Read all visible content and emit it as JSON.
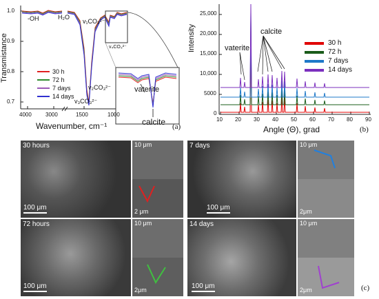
{
  "panel_a": {
    "label": "(a)",
    "ylabel": "Transmistance",
    "xlabel": "Wavenumber, cm⁻¹",
    "yticks": [
      "0.7",
      "0.8",
      "0.9",
      "1.0"
    ],
    "xticks": [
      "4000",
      "3000",
      "1500",
      "1000"
    ],
    "annotations": {
      "oh": "-OH",
      "h2o": "H₂O",
      "v1": "v₁CO₃²⁻",
      "v4": "v₄CO₃²⁻",
      "v2": "v₂CO₃²⁻",
      "v3": "v₃CO₃²⁻",
      "vaterite": "vaterite",
      "calcite": "calcite"
    },
    "legend": [
      {
        "name": "30 h",
        "color": "#e02020"
      },
      {
        "name": "72 h",
        "color": "#2e8b2e"
      },
      {
        "name": "7 days",
        "color": "#9b59b6"
      },
      {
        "name": "14 days",
        "color": "#3030d0"
      }
    ]
  },
  "panel_b": {
    "label": "(b)",
    "ylabel": "Intensity",
    "xlabel": "Angle (Θ), grad",
    "yticks": [
      "0",
      "5000",
      "10,000",
      "15,000",
      "20,000",
      "25,000"
    ],
    "xticks": [
      "10",
      "20",
      "30",
      "40",
      "50",
      "60",
      "70",
      "80",
      "90"
    ],
    "annotations": {
      "vaterite": "vaterite",
      "calcite": "calcite"
    },
    "legend": [
      {
        "name": "30 h",
        "color": "#e00000"
      },
      {
        "name": "72 h",
        "color": "#1a5c1a"
      },
      {
        "name": "7 days",
        "color": "#1e78c8"
      },
      {
        "name": "14 days",
        "color": "#7b2fbe"
      }
    ]
  },
  "panel_c": {
    "label": "(c)",
    "images": [
      {
        "title": "30 hours",
        "scale_main": "100 μm",
        "scale_top": "10 μm",
        "scale_bottom": "2 μm",
        "arrow_color": "#e02020"
      },
      {
        "title": "7 days",
        "scale_main": "100 μm",
        "scale_top": "10 μm",
        "scale_bottom": "2μm",
        "arrow_color": "#2080e0"
      },
      {
        "title": "72 hours",
        "scale_main": "100 μm",
        "scale_top": "10 μm",
        "scale_bottom": "2μm",
        "arrow_color": "#40c040"
      },
      {
        "title": "14 days",
        "scale_main": "100 μm",
        "scale_top": "10 μm",
        "scale_bottom": "2μm",
        "arrow_color": "#a040d0"
      }
    ]
  }
}
